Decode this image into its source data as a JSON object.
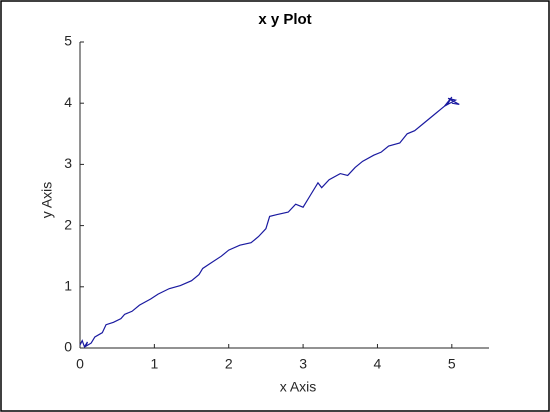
{
  "chart_data": {
    "type": "line",
    "title": "x y Plot",
    "x_label": "x Axis",
    "y_label": "y Axis",
    "color": "#1a1aa0",
    "x": [
      0,
      0.03,
      0.06,
      0.1,
      0.08,
      0.15,
      0.2,
      0.3,
      0.35,
      0.45,
      0.55,
      0.6,
      0.7,
      0.8,
      0.95,
      1.05,
      1.2,
      1.35,
      1.5,
      1.6,
      1.65,
      1.75,
      1.9,
      2.0,
      2.15,
      2.3,
      2.4,
      2.5,
      2.55,
      2.65,
      2.8,
      2.9,
      3.0,
      3.1,
      3.2,
      3.25,
      3.35,
      3.5,
      3.6,
      3.7,
      3.8,
      3.95,
      4.05,
      4.15,
      4.3,
      4.4,
      4.5,
      4.6,
      4.7,
      4.8,
      4.85,
      4.95,
      5.0,
      4.9,
      5.05,
      4.95,
      5.1,
      5.0
    ],
    "y": [
      0.05,
      0.12,
      0.02,
      0.1,
      0.03,
      0.08,
      0.18,
      0.25,
      0.38,
      0.42,
      0.48,
      0.55,
      0.6,
      0.7,
      0.8,
      0.88,
      0.97,
      1.02,
      1.1,
      1.2,
      1.3,
      1.38,
      1.5,
      1.6,
      1.68,
      1.72,
      1.82,
      1.95,
      2.15,
      2.18,
      2.22,
      2.35,
      2.3,
      2.5,
      2.7,
      2.62,
      2.75,
      2.85,
      2.82,
      2.95,
      3.05,
      3.15,
      3.2,
      3.3,
      3.35,
      3.5,
      3.55,
      3.65,
      3.75,
      3.85,
      3.9,
      4.0,
      4.1,
      3.95,
      4.05,
      4.08,
      3.98,
      4.0
    ],
    "xlim": [
      0,
      5.5
    ],
    "ylim": [
      0,
      5
    ],
    "xticks": [
      0,
      1,
      2,
      3,
      4,
      5
    ],
    "yticks": [
      0,
      1,
      2,
      3,
      4,
      5
    ]
  }
}
